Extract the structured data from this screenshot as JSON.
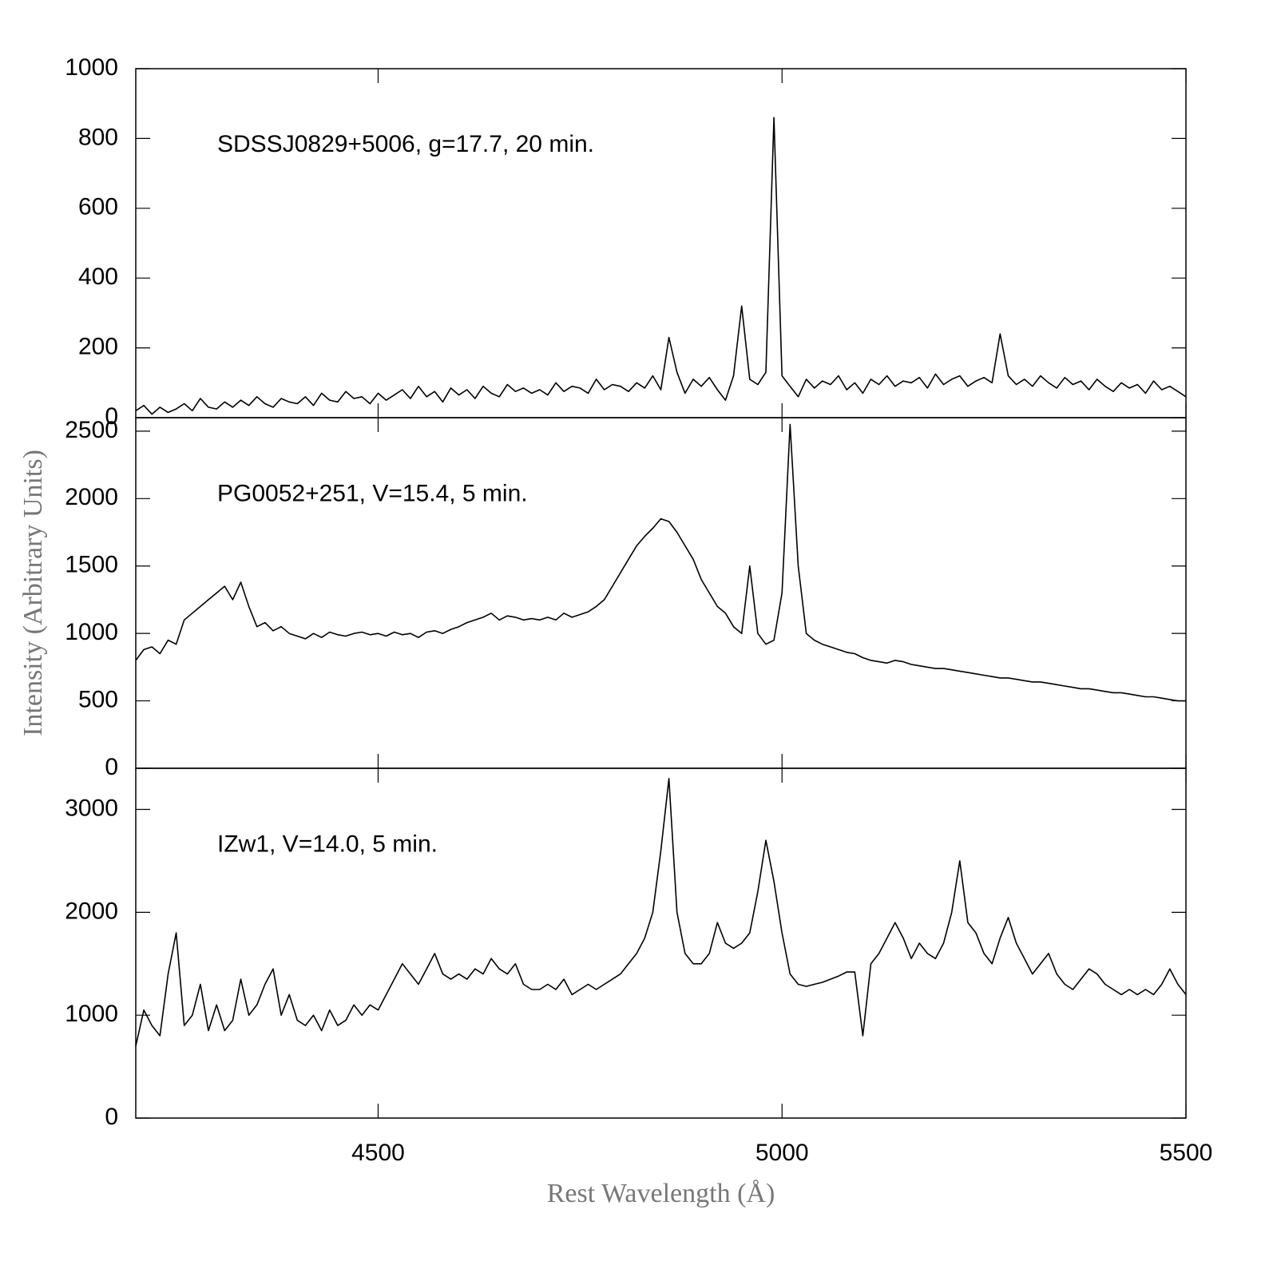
{
  "chart_data": [
    {
      "type": "line",
      "annotation": "SDSSJ0829+5006, g=17.7, 20 min.",
      "color": "#000000",
      "xlim": [
        4200,
        5500
      ],
      "xticks": [
        4500,
        5000,
        5500
      ],
      "xtick_labels": false,
      "ylim": [
        0,
        1000
      ],
      "yticks": [
        0,
        200,
        400,
        600,
        800,
        1000
      ],
      "x": [
        4200,
        4210,
        4220,
        4230,
        4240,
        4250,
        4260,
        4270,
        4280,
        4290,
        4300,
        4310,
        4320,
        4330,
        4340,
        4350,
        4360,
        4370,
        4380,
        4390,
        4400,
        4410,
        4420,
        4430,
        4440,
        4450,
        4460,
        4470,
        4480,
        4490,
        4500,
        4510,
        4520,
        4530,
        4540,
        4550,
        4560,
        4570,
        4580,
        4590,
        4600,
        4610,
        4620,
        4630,
        4640,
        4650,
        4660,
        4670,
        4680,
        4690,
        4700,
        4710,
        4720,
        4730,
        4740,
        4750,
        4760,
        4770,
        4780,
        4790,
        4800,
        4810,
        4820,
        4830,
        4840,
        4850,
        4860,
        4870,
        4880,
        4890,
        4900,
        4910,
        4920,
        4930,
        4940,
        4950,
        4960,
        4970,
        4980,
        4990,
        5000,
        5010,
        5020,
        5030,
        5040,
        5050,
        5060,
        5070,
        5080,
        5090,
        5100,
        5110,
        5120,
        5130,
        5140,
        5150,
        5160,
        5170,
        5180,
        5190,
        5200,
        5210,
        5220,
        5230,
        5240,
        5250,
        5260,
        5270,
        5280,
        5290,
        5300,
        5310,
        5320,
        5330,
        5340,
        5350,
        5360,
        5370,
        5380,
        5390,
        5400,
        5410,
        5420,
        5430,
        5440,
        5450,
        5460,
        5470,
        5480,
        5490,
        5500
      ],
      "values": [
        20,
        35,
        10,
        30,
        15,
        25,
        40,
        20,
        55,
        30,
        25,
        45,
        30,
        50,
        35,
        60,
        40,
        30,
        55,
        45,
        40,
        60,
        35,
        70,
        50,
        45,
        75,
        55,
        60,
        40,
        70,
        50,
        65,
        80,
        55,
        90,
        60,
        75,
        45,
        85,
        65,
        80,
        55,
        90,
        70,
        60,
        95,
        75,
        85,
        70,
        80,
        65,
        100,
        75,
        90,
        85,
        70,
        110,
        80,
        95,
        90,
        75,
        100,
        85,
        120,
        80,
        230,
        130,
        70,
        110,
        90,
        115,
        80,
        50,
        120,
        320,
        110,
        95,
        130,
        860,
        120,
        90,
        60,
        110,
        85,
        105,
        95,
        120,
        80,
        100,
        70,
        110,
        95,
        120,
        90,
        105,
        100,
        115,
        85,
        125,
        95,
        110,
        120,
        90,
        105,
        115,
        100,
        240,
        120,
        95,
        110,
        90,
        120,
        100,
        85,
        115,
        95,
        105,
        80,
        110,
        90,
        75,
        100,
        85,
        95,
        70,
        105,
        80,
        90,
        75,
        60
      ]
    },
    {
      "type": "line",
      "annotation": "PG0052+251, V=15.4, 5 min.",
      "color": "#000000",
      "y_label": "Intensity (Arbitrary Units)",
      "xlim": [
        4200,
        5500
      ],
      "xticks": [
        4500,
        5000,
        5500
      ],
      "xtick_labels": false,
      "ylim": [
        0,
        2600
      ],
      "yticks": [
        0,
        500,
        1000,
        1500,
        2000,
        2500
      ],
      "x": [
        4200,
        4210,
        4220,
        4230,
        4240,
        4250,
        4260,
        4270,
        4280,
        4290,
        4300,
        4310,
        4320,
        4330,
        4340,
        4350,
        4360,
        4370,
        4380,
        4390,
        4400,
        4410,
        4420,
        4430,
        4440,
        4450,
        4460,
        4470,
        4480,
        4490,
        4500,
        4510,
        4520,
        4530,
        4540,
        4550,
        4560,
        4570,
        4580,
        4590,
        4600,
        4610,
        4620,
        4630,
        4640,
        4650,
        4660,
        4670,
        4680,
        4690,
        4700,
        4710,
        4720,
        4730,
        4740,
        4750,
        4760,
        4770,
        4780,
        4790,
        4800,
        4810,
        4820,
        4830,
        4840,
        4850,
        4860,
        4870,
        4880,
        4890,
        4900,
        4910,
        4920,
        4930,
        4940,
        4950,
        4960,
        4970,
        4980,
        4990,
        5000,
        5010,
        5020,
        5030,
        5040,
        5050,
        5060,
        5070,
        5080,
        5090,
        5100,
        5110,
        5120,
        5130,
        5140,
        5150,
        5160,
        5170,
        5180,
        5190,
        5200,
        5210,
        5220,
        5230,
        5240,
        5250,
        5260,
        5270,
        5280,
        5290,
        5300,
        5310,
        5320,
        5330,
        5340,
        5350,
        5360,
        5370,
        5380,
        5390,
        5400,
        5410,
        5420,
        5430,
        5440,
        5450,
        5460,
        5470,
        5480,
        5490,
        5500
      ],
      "values": [
        800,
        880,
        900,
        850,
        950,
        920,
        1100,
        1150,
        1200,
        1250,
        1300,
        1350,
        1250,
        1380,
        1200,
        1050,
        1080,
        1020,
        1050,
        1000,
        980,
        960,
        1000,
        970,
        1010,
        990,
        980,
        1000,
        1010,
        990,
        1000,
        980,
        1010,
        990,
        1000,
        970,
        1010,
        1020,
        1000,
        1030,
        1050,
        1080,
        1100,
        1120,
        1150,
        1100,
        1130,
        1120,
        1100,
        1110,
        1100,
        1120,
        1100,
        1150,
        1120,
        1140,
        1160,
        1200,
        1250,
        1350,
        1450,
        1550,
        1650,
        1720,
        1780,
        1850,
        1830,
        1750,
        1650,
        1550,
        1400,
        1300,
        1200,
        1150,
        1050,
        1000,
        1500,
        1000,
        920,
        950,
        1300,
        2550,
        1500,
        1000,
        950,
        920,
        900,
        880,
        860,
        850,
        820,
        800,
        790,
        780,
        800,
        790,
        770,
        760,
        750,
        740,
        740,
        730,
        720,
        710,
        700,
        690,
        680,
        670,
        670,
        660,
        650,
        640,
        640,
        630,
        620,
        610,
        600,
        590,
        590,
        580,
        570,
        560,
        560,
        550,
        540,
        530,
        530,
        520,
        510,
        500,
        500
      ]
    },
    {
      "type": "line",
      "annotation": "IZw1, V=14.0, 5 min.",
      "color": "#000000",
      "x_label": "Rest Wavelength (Å)",
      "xlim": [
        4200,
        5500
      ],
      "xticks": [
        4500,
        5000,
        5500
      ],
      "xtick_labels": true,
      "ylim": [
        0,
        3400
      ],
      "yticks": [
        0,
        1000,
        2000,
        3000
      ],
      "x": [
        4200,
        4210,
        4220,
        4230,
        4240,
        4250,
        4260,
        4270,
        4280,
        4290,
        4300,
        4310,
        4320,
        4330,
        4340,
        4350,
        4360,
        4370,
        4380,
        4390,
        4400,
        4410,
        4420,
        4430,
        4440,
        4450,
        4460,
        4470,
        4480,
        4490,
        4500,
        4510,
        4520,
        4530,
        4540,
        4550,
        4560,
        4570,
        4580,
        4590,
        4600,
        4610,
        4620,
        4630,
        4640,
        4650,
        4660,
        4670,
        4680,
        4690,
        4700,
        4710,
        4720,
        4730,
        4740,
        4750,
        4760,
        4770,
        4780,
        4790,
        4800,
        4810,
        4820,
        4830,
        4840,
        4850,
        4860,
        4870,
        4880,
        4890,
        4900,
        4910,
        4920,
        4930,
        4940,
        4950,
        4960,
        4970,
        4980,
        4990,
        5000,
        5010,
        5020,
        5030,
        5040,
        5050,
        5060,
        5070,
        5080,
        5090,
        5100,
        5110,
        5120,
        5130,
        5140,
        5150,
        5160,
        5170,
        5180,
        5190,
        5200,
        5210,
        5220,
        5230,
        5240,
        5250,
        5260,
        5270,
        5280,
        5290,
        5300,
        5310,
        5320,
        5330,
        5340,
        5350,
        5360,
        5370,
        5380,
        5390,
        5400,
        5410,
        5420,
        5430,
        5440,
        5450,
        5460,
        5470,
        5480,
        5490,
        5500
      ],
      "values": [
        700,
        1050,
        900,
        800,
        1400,
        1800,
        900,
        1000,
        1300,
        850,
        1100,
        850,
        950,
        1350,
        1000,
        1100,
        1300,
        1450,
        1000,
        1200,
        950,
        900,
        1000,
        850,
        1050,
        900,
        950,
        1100,
        1000,
        1100,
        1050,
        1200,
        1350,
        1500,
        1400,
        1300,
        1450,
        1600,
        1400,
        1350,
        1400,
        1350,
        1450,
        1400,
        1550,
        1450,
        1400,
        1500,
        1300,
        1250,
        1250,
        1300,
        1250,
        1350,
        1200,
        1250,
        1300,
        1250,
        1300,
        1350,
        1400,
        1500,
        1600,
        1750,
        2000,
        2600,
        3300,
        2000,
        1600,
        1500,
        1500,
        1600,
        1900,
        1700,
        1650,
        1700,
        1800,
        2200,
        2700,
        2300,
        1800,
        1400,
        1300,
        1280,
        1300,
        1320,
        1350,
        1380,
        1420,
        1420,
        800,
        1500,
        1600,
        1750,
        1900,
        1750,
        1550,
        1700,
        1600,
        1550,
        1700,
        2000,
        2500,
        1900,
        1800,
        1600,
        1500,
        1750,
        1950,
        1700,
        1550,
        1400,
        1500,
        1600,
        1400,
        1300,
        1250,
        1350,
        1450,
        1400,
        1300,
        1250,
        1200,
        1250,
        1200,
        1250,
        1200,
        1300,
        1450,
        1300,
        1200
      ]
    }
  ]
}
